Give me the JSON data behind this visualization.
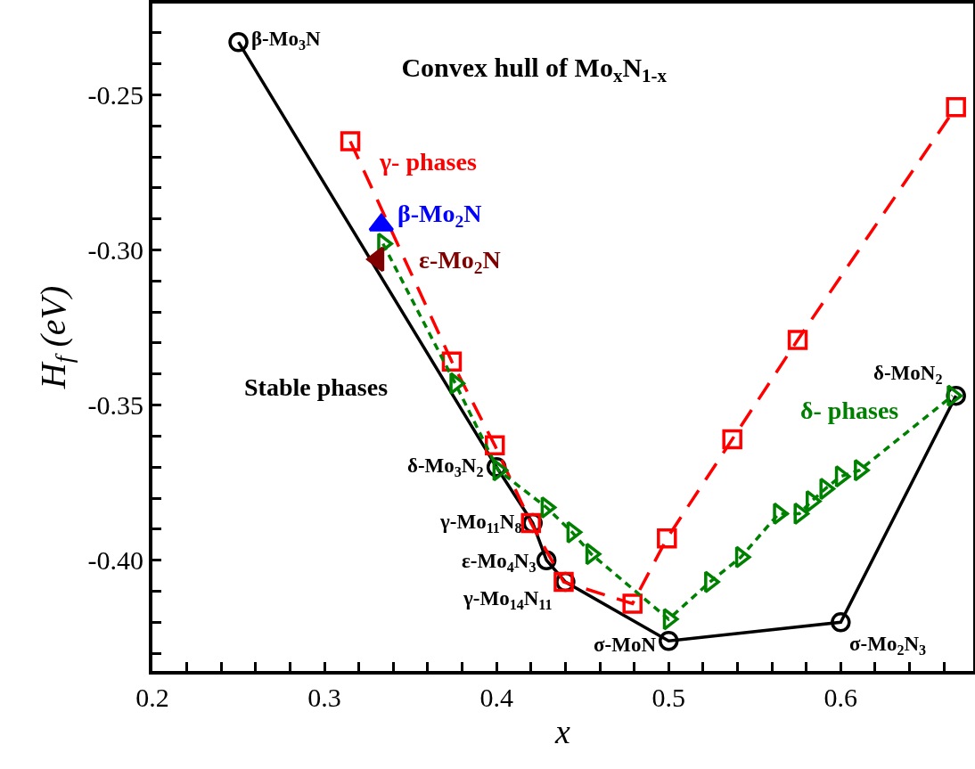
{
  "chart_data": {
    "type": "line",
    "title": "Convex hull of Mo$_{x}$N$_{1-x}$",
    "xlabel": "x",
    "ylabel": "H$_{f}$ (eV)",
    "xlim": [
      0.2,
      0.677
    ],
    "ylim": [
      -0.4357,
      -0.2206
    ],
    "xticks": [
      0.2,
      {
        "value": 0.22,
        "label": null
      },
      {
        "value": 0.24,
        "label": null
      },
      {
        "value": 0.26,
        "label": null
      },
      {
        "value": 0.28,
        "label": null
      },
      0.3,
      {
        "value": 0.32,
        "label": null
      },
      {
        "value": 0.34,
        "label": null
      },
      {
        "value": 0.36,
        "label": null
      },
      {
        "value": 0.38,
        "label": null
      },
      0.4,
      {
        "value": 0.42,
        "label": null
      },
      {
        "value": 0.44,
        "label": null
      },
      {
        "value": 0.46,
        "label": null
      },
      {
        "value": 0.48,
        "label": null
      },
      0.5,
      {
        "value": 0.52,
        "label": null
      },
      {
        "value": 0.54,
        "label": null
      },
      {
        "value": 0.56,
        "label": null
      },
      {
        "value": 0.58,
        "label": null
      },
      0.6,
      {
        "value": 0.62,
        "label": null
      },
      {
        "value": 0.64,
        "label": null
      },
      {
        "value": 0.66,
        "label": null
      }
    ],
    "yticks": [
      {
        "value": -0.43,
        "label": null
      },
      {
        "value": -0.42,
        "label": null
      },
      {
        "value": -0.41,
        "label": null
      },
      {
        "value": -0.4,
        "label": "-0.40"
      },
      {
        "value": -0.39,
        "label": null
      },
      {
        "value": -0.38,
        "label": null
      },
      {
        "value": -0.37,
        "label": null
      },
      {
        "value": -0.36,
        "label": null
      },
      {
        "value": -0.35,
        "label": "-0.35"
      },
      {
        "value": -0.34,
        "label": null
      },
      {
        "value": -0.33,
        "label": null
      },
      {
        "value": -0.32,
        "label": null
      },
      {
        "value": -0.31,
        "label": null
      },
      {
        "value": -0.3,
        "label": "-0.30"
      },
      {
        "value": -0.29,
        "label": null
      },
      {
        "value": -0.28,
        "label": null
      },
      {
        "value": -0.27,
        "label": null
      },
      {
        "value": -0.26,
        "label": null
      },
      {
        "value": -0.25,
        "label": "-0.25"
      },
      {
        "value": -0.24,
        "label": null
      },
      {
        "value": -0.23,
        "label": null
      }
    ],
    "grid": false,
    "legend": false,
    "series": [
      {
        "name": "Stable phases",
        "color": "#000000",
        "marker": "circle",
        "line_style": "solid",
        "x": [
          0.25,
          0.4,
          0.421,
          0.429,
          0.44,
          0.5,
          0.6,
          0.667
        ],
        "values": [
          -0.233,
          -0.37,
          -0.388,
          -0.4,
          -0.407,
          -0.426,
          -0.42,
          -0.347
        ]
      },
      {
        "name": "γ- phases",
        "color": "#ff0000",
        "marker": "square",
        "line_style": "dashed",
        "x": [
          0.315,
          0.374,
          0.399,
          0.42,
          0.439,
          0.479,
          0.499,
          0.537,
          0.575,
          0.667
        ],
        "values": [
          -0.265,
          -0.336,
          -0.363,
          -0.388,
          -0.407,
          -0.414,
          -0.393,
          -0.361,
          -0.329,
          -0.254
        ]
      },
      {
        "name": "δ- phases",
        "color": "#008000",
        "marker": "triangle",
        "line_style": "dotted",
        "x": [
          0.334,
          0.376,
          0.401,
          0.429,
          0.444,
          0.455,
          0.5,
          0.524,
          0.542,
          0.564,
          0.576,
          0.583,
          0.591,
          0.6,
          0.611,
          0.665
        ],
        "values": [
          -0.298,
          -0.343,
          -0.371,
          -0.383,
          -0.391,
          -0.398,
          -0.419,
          -0.407,
          -0.399,
          -0.385,
          -0.385,
          -0.381,
          -0.377,
          -0.373,
          -0.371,
          -0.347
        ]
      },
      {
        "name": "β-Mo$_{2}$N",
        "type": "scatter",
        "color": "#0000ff",
        "marker": "triangle",
        "x": [
          0.333
        ],
        "values": [
          -0.292
        ]
      },
      {
        "name": "ε-Mo$_{2}$N",
        "type": "scatter",
        "color": "#800000",
        "marker": "triangle",
        "x": [
          0.331
        ],
        "values": [
          -0.303
        ]
      }
    ],
    "annotations": [
      {
        "text": "β-Mo$_{3}$N",
        "x": 0.25,
        "y": -0.233
      },
      {
        "text": "δ-Mo$_{3}$N$_{2}$",
        "x": 0.4,
        "y": -0.37
      },
      {
        "text": "γ-Mo$_{11}$N$_{8}$",
        "x": 0.421,
        "y": -0.388
      },
      {
        "text": "ε-Mo$_{4}$N$_{3}$",
        "x": 0.429,
        "y": -0.4
      },
      {
        "text": "γ-Mo$_{14}$N$_{11}$",
        "x": 0.44,
        "y": -0.407
      },
      {
        "text": "σ-MoN",
        "x": 0.5,
        "y": -0.426
      },
      {
        "text": "σ-Mo$_{2}$N$_{3}$",
        "x": 0.6,
        "y": -0.42
      },
      {
        "text": "δ-MoN$_{2}$",
        "x": 0.667,
        "y": -0.347
      }
    ]
  }
}
